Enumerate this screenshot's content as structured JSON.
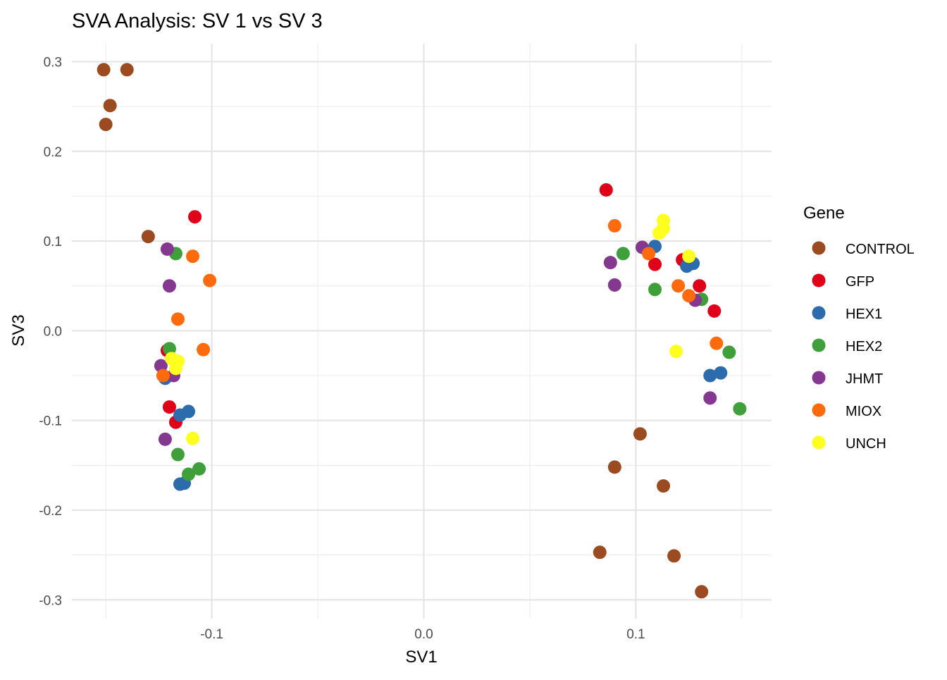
{
  "chart_data": {
    "type": "scatter",
    "title": "SVA Analysis: SV 1  vs SV 3",
    "xlabel": "SV1",
    "ylabel": "SV3",
    "xlim": [
      -0.166,
      0.164
    ],
    "ylim": [
      -0.321,
      0.32
    ],
    "x_ticks": [
      -0.1,
      0.0,
      0.1
    ],
    "x_tick_labels": [
      "-0.1",
      "0.0",
      "0.1"
    ],
    "y_ticks": [
      0.3,
      0.2,
      0.1,
      0.0,
      -0.1,
      -0.2,
      -0.3
    ],
    "y_tick_labels": [
      "0.3",
      "0.2",
      "0.1",
      "0.0",
      "-0.1",
      "-0.2",
      "-0.3"
    ],
    "grid": true,
    "legend": {
      "title": "Gene",
      "placement": "right"
    },
    "series": [
      {
        "name": "CONTROL",
        "color": "#9C4A20",
        "points": [
          [
            -0.151,
            0.291
          ],
          [
            -0.14,
            0.291
          ],
          [
            -0.148,
            0.251
          ],
          [
            -0.15,
            0.23
          ],
          [
            -0.13,
            0.105
          ],
          [
            0.102,
            -0.115
          ],
          [
            0.09,
            -0.152
          ],
          [
            0.113,
            -0.173
          ],
          [
            0.083,
            -0.247
          ],
          [
            0.118,
            -0.251
          ],
          [
            0.131,
            -0.291
          ]
        ]
      },
      {
        "name": "GFP",
        "color": "#E0001A",
        "points": [
          [
            -0.108,
            0.127
          ],
          [
            -0.121,
            -0.022
          ],
          [
            -0.12,
            -0.085
          ],
          [
            -0.117,
            -0.102
          ],
          [
            0.086,
            0.157
          ],
          [
            0.109,
            0.074
          ],
          [
            0.122,
            0.079
          ],
          [
            0.13,
            0.05
          ],
          [
            0.137,
            0.022
          ]
        ]
      },
      {
        "name": "HEX1",
        "color": "#2C6BAC",
        "points": [
          [
            0.109,
            0.094
          ],
          [
            0.124,
            0.072
          ],
          [
            0.127,
            0.075
          ],
          [
            0.135,
            -0.05
          ],
          [
            0.14,
            -0.047
          ],
          [
            -0.111,
            -0.09
          ],
          [
            -0.115,
            -0.094
          ],
          [
            -0.115,
            -0.171
          ],
          [
            -0.113,
            -0.17
          ],
          [
            -0.122,
            -0.053
          ]
        ]
      },
      {
        "name": "HEX2",
        "color": "#3F9F3A",
        "points": [
          [
            -0.117,
            0.086
          ],
          [
            -0.12,
            -0.02
          ],
          [
            -0.116,
            -0.138
          ],
          [
            -0.111,
            -0.16
          ],
          [
            -0.106,
            -0.154
          ],
          [
            0.094,
            0.086
          ],
          [
            0.109,
            0.046
          ],
          [
            0.131,
            0.035
          ],
          [
            0.144,
            -0.024
          ],
          [
            0.149,
            -0.087
          ]
        ]
      },
      {
        "name": "JHMT",
        "color": "#84388F",
        "points": [
          [
            -0.121,
            0.091
          ],
          [
            -0.12,
            0.05
          ],
          [
            -0.124,
            -0.039
          ],
          [
            -0.118,
            -0.05
          ],
          [
            -0.122,
            -0.121
          ],
          [
            0.088,
            0.076
          ],
          [
            0.09,
            0.051
          ],
          [
            0.103,
            0.093
          ],
          [
            0.128,
            0.034
          ],
          [
            0.135,
            -0.075
          ]
        ]
      },
      {
        "name": "MIOX",
        "color": "#FF6A0D",
        "points": [
          [
            -0.109,
            0.083
          ],
          [
            -0.101,
            0.056
          ],
          [
            -0.116,
            0.013
          ],
          [
            -0.104,
            -0.021
          ],
          [
            -0.123,
            -0.05
          ],
          [
            0.09,
            0.117
          ],
          [
            0.106,
            0.086
          ],
          [
            0.12,
            0.05
          ],
          [
            0.125,
            0.039
          ],
          [
            0.138,
            -0.014
          ]
        ]
      },
      {
        "name": "UNCH",
        "color": "#FFFF1F",
        "points": [
          [
            0.113,
            0.123
          ],
          [
            0.113,
            0.114
          ],
          [
            0.111,
            0.109
          ],
          [
            0.125,
            0.083
          ],
          [
            0.119,
            -0.023
          ],
          [
            -0.119,
            -0.031
          ],
          [
            -0.116,
            -0.034
          ],
          [
            -0.117,
            -0.042
          ],
          [
            -0.109,
            -0.12
          ]
        ]
      }
    ]
  }
}
